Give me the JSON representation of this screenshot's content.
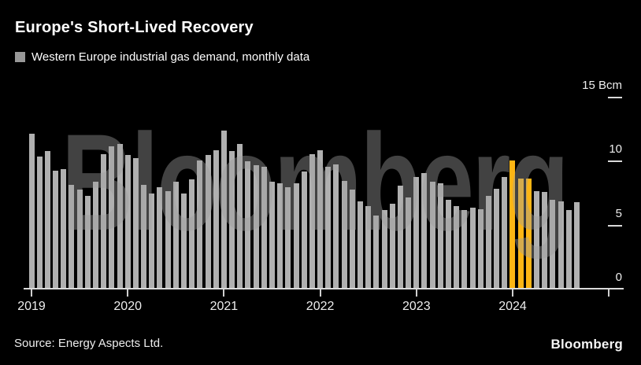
{
  "header": {
    "title": "Europe's Short-Lived Recovery",
    "legend_label": "Western Europe industrial gas demand, monthly data"
  },
  "watermark": {
    "text": "Bloomberg"
  },
  "footer": {
    "source": "Source: Energy Aspects Ltd.",
    "brand": "Bloomberg"
  },
  "colors": {
    "background": "#000000",
    "bar": "#b0b0b0",
    "highlight": "#fcb514",
    "legend_swatch": "#989898",
    "axis": "#d9d9d9",
    "text": "#ffffff"
  },
  "chart_data": {
    "type": "bar",
    "title": "Europe's Short-Lived Recovery",
    "series_name": "Western Europe industrial gas demand, monthly data",
    "unit": "Bcm",
    "x_start": "2019-01",
    "x_end": "2024-09",
    "months_per_year": 12,
    "x_tick_labels": [
      "2019",
      "2020",
      "2021",
      "2022",
      "2023",
      "2024"
    ],
    "y_tick_values": [
      0,
      5,
      10,
      15
    ],
    "y_tick_labels": [
      "0",
      "5",
      "10",
      "15 Bcm"
    ],
    "ylim": [
      0,
      15
    ],
    "grid": false,
    "legend_position": "top-left",
    "values": [
      12.2,
      10.4,
      10.8,
      9.3,
      9.4,
      8.2,
      7.8,
      7.3,
      8.4,
      10.6,
      11.2,
      11.4,
      10.5,
      10.3,
      8.2,
      7.5,
      8.0,
      7.7,
      8.4,
      7.5,
      8.6,
      10.1,
      10.5,
      10.9,
      12.4,
      10.8,
      11.4,
      10.0,
      9.7,
      9.6,
      8.4,
      8.3,
      8.0,
      8.3,
      9.2,
      10.6,
      10.9,
      9.6,
      9.8,
      8.5,
      7.8,
      6.9,
      6.5,
      5.8,
      6.2,
      6.7,
      8.1,
      7.2,
      8.8,
      9.1,
      8.4,
      8.3,
      7.0,
      6.5,
      6.2,
      6.4,
      6.3,
      7.3,
      7.9,
      8.8,
      10.1,
      8.7,
      8.7,
      7.7,
      7.6,
      7.0,
      6.9,
      6.2,
      6.8
    ],
    "highlight_indices": [
      60,
      61,
      62
    ],
    "highlight_months": [
      "2024-01",
      "2024-02",
      "2024-03"
    ]
  }
}
